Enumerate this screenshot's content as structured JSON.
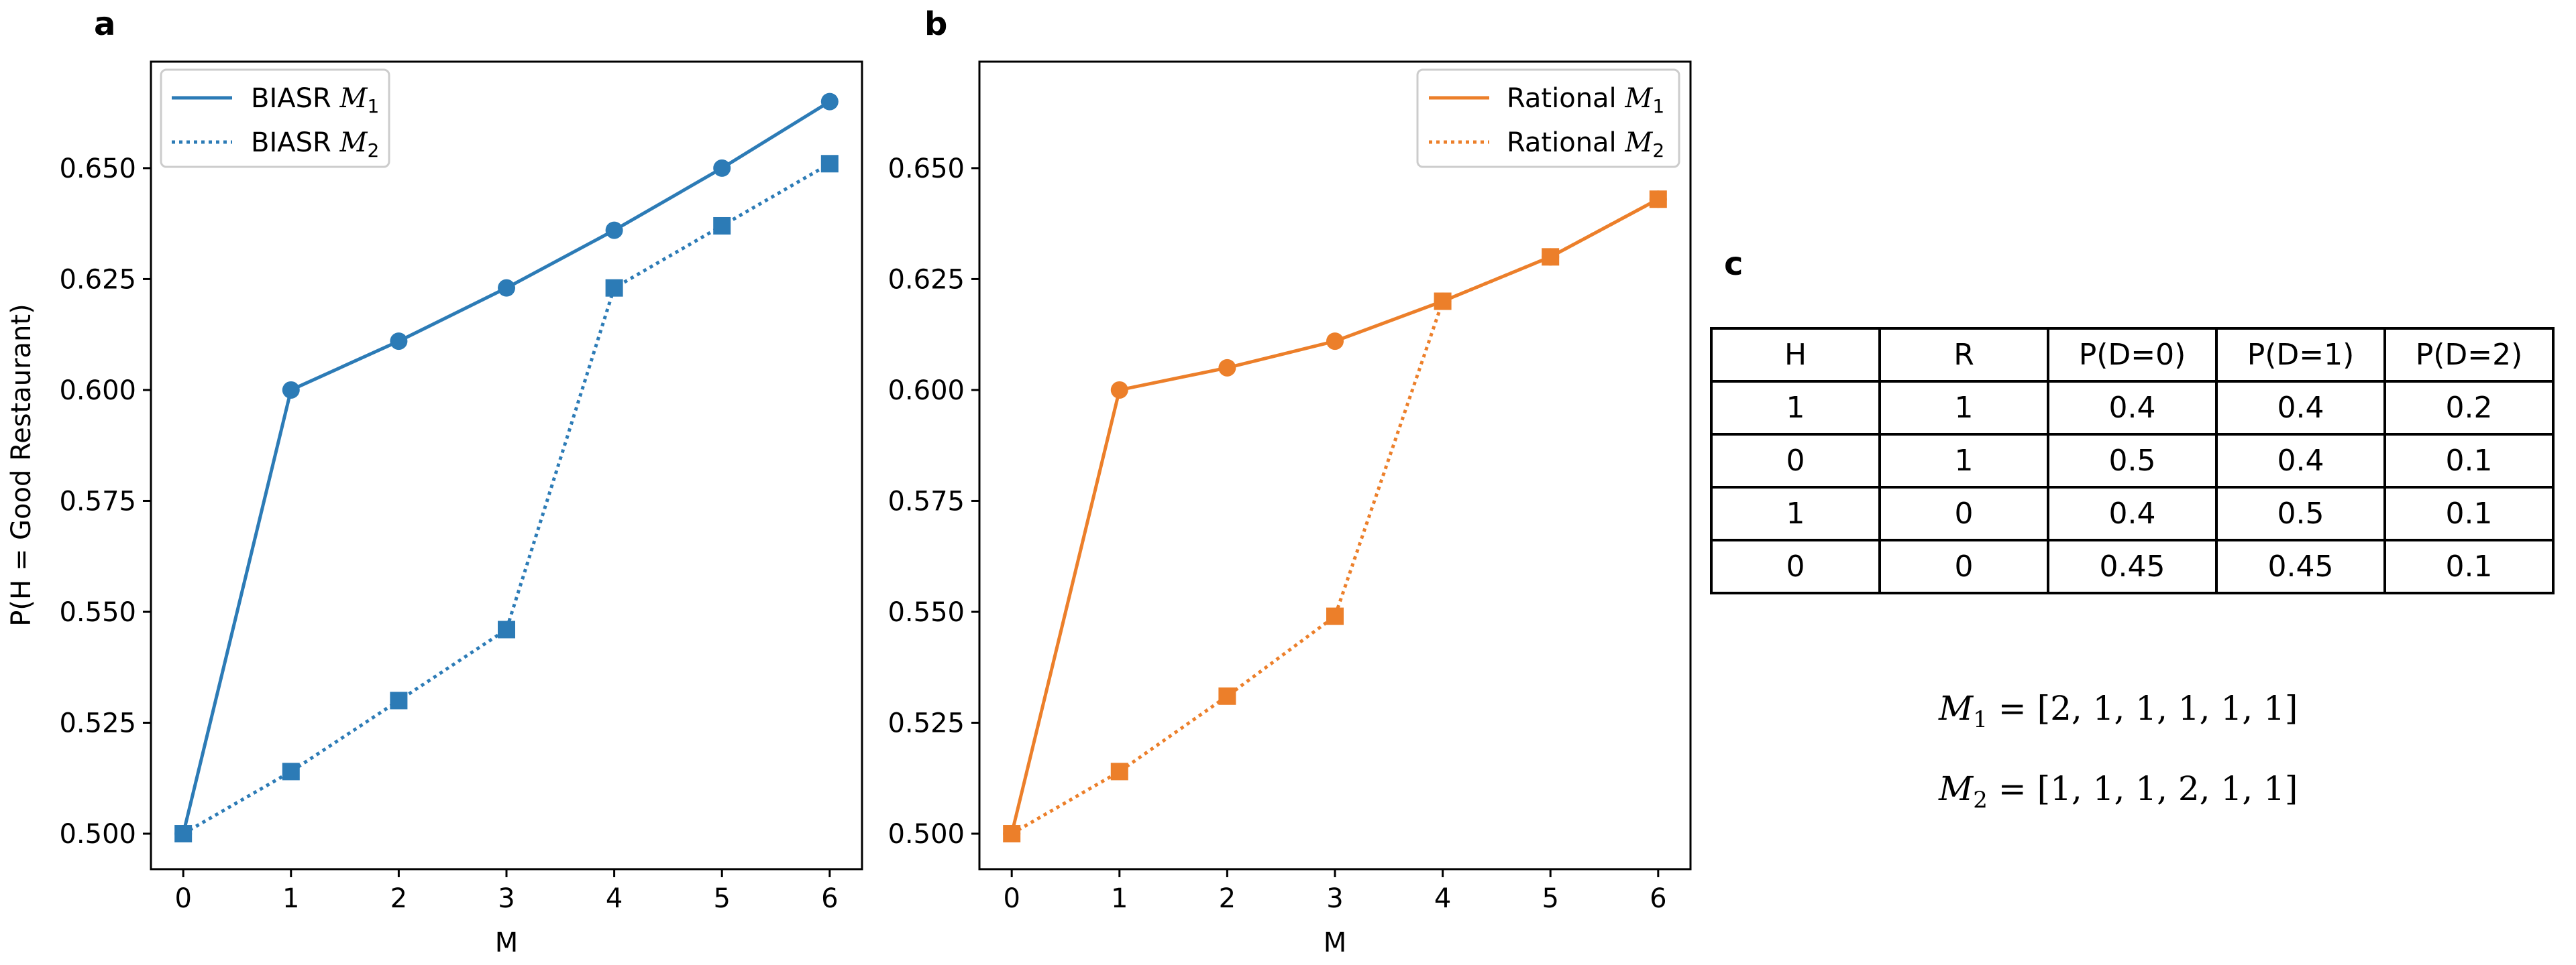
{
  "colors": {
    "blue": "#2c7bb6",
    "orange": "#ec7f2a",
    "axis": "#000000"
  },
  "panels": {
    "a": {
      "label": "a",
      "legend": [
        {
          "text": "BIASR",
          "sub": "1",
          "style": "solid"
        },
        {
          "text": "BIASR",
          "sub": "2",
          "style": "dotted"
        }
      ]
    },
    "b": {
      "label": "b",
      "legend": [
        {
          "text": "Rational",
          "sub": "1",
          "style": "solid"
        },
        {
          "text": "Rational",
          "sub": "2",
          "style": "dotted"
        }
      ]
    },
    "c": {
      "label": "c"
    }
  },
  "chart_data": [
    {
      "type": "line",
      "panel": "a",
      "xlabel": "M",
      "ylabel": "P(H = Good Restaurant)",
      "xlim": [
        -0.3,
        6.3
      ],
      "ylim": [
        0.492,
        0.674
      ],
      "xticks": [
        0,
        1,
        2,
        3,
        4,
        5,
        6
      ],
      "yticks": [
        0.5,
        0.525,
        0.55,
        0.575,
        0.6,
        0.625,
        0.65
      ],
      "x": [
        0,
        1,
        2,
        3,
        4,
        5,
        6
      ],
      "legend_position": "upper-left",
      "series": [
        {
          "name": "BIASR M1",
          "style": "solid",
          "marker": "circle",
          "color": "#2c7bb6",
          "values": [
            0.5,
            0.6,
            0.611,
            0.623,
            0.636,
            0.65,
            0.665
          ]
        },
        {
          "name": "BIASR M2",
          "style": "dotted",
          "marker": "square",
          "color": "#2c7bb6",
          "values": [
            0.5,
            0.514,
            0.53,
            0.546,
            0.623,
            0.637,
            0.651
          ]
        }
      ]
    },
    {
      "type": "line",
      "panel": "b",
      "xlabel": "M",
      "ylabel": "",
      "xlim": [
        -0.3,
        6.3
      ],
      "ylim": [
        0.492,
        0.674
      ],
      "xticks": [
        0,
        1,
        2,
        3,
        4,
        5,
        6
      ],
      "yticks": [
        0.5,
        0.525,
        0.55,
        0.575,
        0.6,
        0.625,
        0.65
      ],
      "x": [
        0,
        1,
        2,
        3,
        4,
        5,
        6
      ],
      "legend_position": "upper-right",
      "series": [
        {
          "name": "Rational M1",
          "style": "solid",
          "marker": "circle",
          "color": "#ec7f2a",
          "values": [
            0.5,
            0.6,
            0.605,
            0.611,
            0.62,
            0.63,
            0.643
          ]
        },
        {
          "name": "Rational M2",
          "style": "dotted",
          "marker": "square",
          "color": "#ec7f2a",
          "values": [
            0.5,
            0.514,
            0.531,
            0.549,
            0.62,
            0.63,
            0.643
          ]
        }
      ]
    },
    {
      "type": "table",
      "panel": "c",
      "columns": [
        "H",
        "R",
        "P(D=0)",
        "P(D=1)",
        "P(D=2)"
      ],
      "rows": [
        [
          "1",
          "1",
          "0.4",
          "0.4",
          "0.2"
        ],
        [
          "0",
          "1",
          "0.5",
          "0.4",
          "0.1"
        ],
        [
          "1",
          "0",
          "0.4",
          "0.5",
          "0.1"
        ],
        [
          "0",
          "0",
          "0.45",
          "0.45",
          "0.1"
        ]
      ]
    }
  ],
  "equations": {
    "m1": {
      "name": "M",
      "sub": "1",
      "eq": "=",
      "value": "[2, 1, 1, 1, 1, 1]"
    },
    "m2": {
      "name": "M",
      "sub": "2",
      "eq": "=",
      "value": "[1, 1, 1, 2, 1, 1]"
    }
  }
}
